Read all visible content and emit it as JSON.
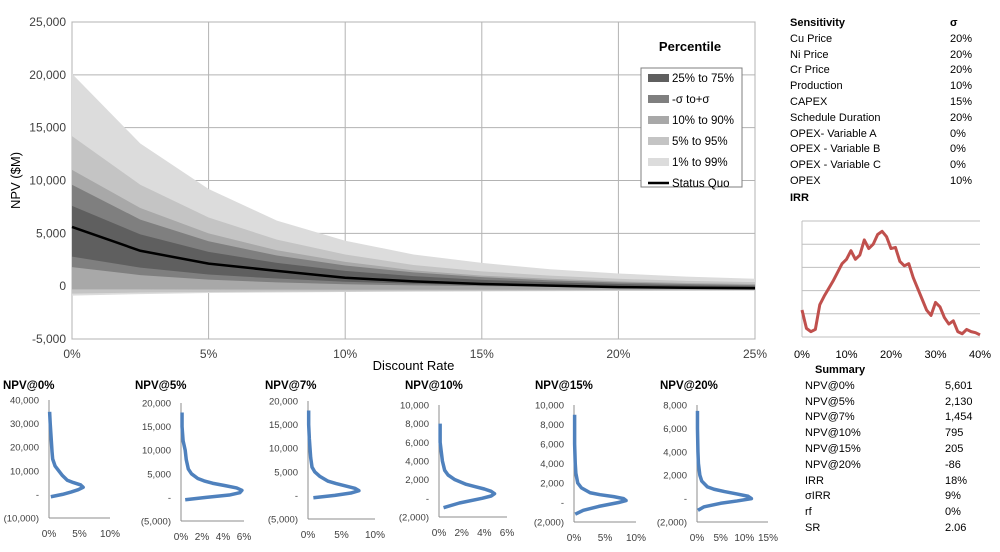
{
  "main": {
    "chart_data": {
      "type": "area",
      "xlabel": "Discount Rate",
      "ylabel": "NPV ($M)",
      "x_ticks": [
        "0%",
        "5%",
        "10%",
        "15%",
        "20%",
        "25%"
      ],
      "y_ticks": [
        "-5,000",
        "0",
        "5,000",
        "10,000",
        "15,000",
        "20,000",
        "25,000"
      ],
      "xlim": [
        0,
        25
      ],
      "ylim": [
        -5000,
        25000
      ],
      "x": [
        0,
        2.5,
        5,
        7.5,
        10,
        12.5,
        15,
        17.5,
        20,
        22.5,
        25
      ],
      "status_quo": [
        5601,
        3350,
        2130,
        1450,
        795,
        450,
        205,
        50,
        -86,
        -150,
        -200
      ],
      "bands": [
        {
          "name": "1% to 99%",
          "color": "#dcdcdc",
          "lo": [
            -900,
            -750,
            -650,
            -600,
            -550,
            -520,
            -500,
            -480,
            -460,
            -440,
            -430
          ],
          "hi": [
            20100,
            13500,
            9200,
            6200,
            4300,
            3000,
            2200,
            1600,
            1200,
            900,
            700
          ]
        },
        {
          "name": "5% to 95%",
          "color": "#c4c4c4",
          "lo": [
            -700,
            -600,
            -550,
            -520,
            -500,
            -480,
            -460,
            -440,
            -420,
            -410,
            -400
          ],
          "hi": [
            14200,
            9600,
            6500,
            4400,
            3000,
            2000,
            1400,
            1000,
            700,
            500,
            380
          ]
        },
        {
          "name": "10% to 90%",
          "color": "#a8a8a8",
          "lo": [
            -300,
            -300,
            -320,
            -330,
            -340,
            -340,
            -340,
            -340,
            -340,
            -340,
            -340
          ],
          "hi": [
            11000,
            7400,
            5000,
            3400,
            2300,
            1500,
            1000,
            700,
            450,
            300,
            200
          ]
        },
        {
          "name": "-σ to+σ",
          "color": "#7f7f7f",
          "lo": [
            1800,
            1050,
            620,
            360,
            180,
            70,
            0,
            -60,
            -100,
            -130,
            -150
          ],
          "hi": [
            9600,
            6300,
            4250,
            2900,
            1950,
            1300,
            850,
            550,
            350,
            200,
            100
          ]
        },
        {
          "name": "25% to 75%",
          "color": "#5f5f5f",
          "lo": [
            2800,
            1750,
            1100,
            720,
            420,
            230,
            100,
            20,
            -40,
            -90,
            -120
          ],
          "hi": [
            7600,
            4900,
            3250,
            2200,
            1450,
            950,
            600,
            370,
            200,
            80,
            0
          ]
        }
      ],
      "legend_title": "Percentile",
      "legend": [
        "25% to 75%",
        "-σ to+σ",
        "10% to 90%",
        "5% to 95%",
        "1% to 99%",
        "Status Quo"
      ],
      "legend_colors": [
        "#5f5f5f",
        "#7f7f7f",
        "#a8a8a8",
        "#c4c4c4",
        "#dcdcdc",
        "#000000"
      ],
      "legend_placement": "top-right",
      "grid": true
    }
  },
  "sensitivity": {
    "title": "Sensitivity",
    "sigma_header": "σ",
    "rows": [
      {
        "label": "Cu Price",
        "value": "20%"
      },
      {
        "label": "Ni Price",
        "value": "20%"
      },
      {
        "label": "Cr Price",
        "value": "20%"
      },
      {
        "label": "Production",
        "value": "10%"
      },
      {
        "label": "CAPEX",
        "value": "15%"
      },
      {
        "label": "Schedule Duration",
        "value": "20%"
      },
      {
        "label": "OPEX- Variable A",
        "value": "0%"
      },
      {
        "label": "OPEX - Variable B",
        "value": "0%"
      },
      {
        "label": "OPEX - Variable C",
        "value": "0%"
      },
      {
        "label": "OPEX",
        "value": "10%"
      }
    ]
  },
  "irr": {
    "chart_data": {
      "type": "line",
      "title": "IRR",
      "x_ticks": [
        "0%",
        "10%",
        "20%",
        "30%",
        "40%"
      ],
      "xlim": [
        0,
        40
      ],
      "ylim": [
        0,
        1
      ],
      "color": "#c0504d",
      "x": [
        0,
        1,
        2,
        3,
        4,
        5,
        6,
        7,
        8,
        9,
        10,
        11,
        12,
        13,
        14,
        15,
        16,
        17,
        18,
        19,
        20,
        21,
        22,
        23,
        24,
        25,
        26,
        27,
        28,
        29,
        30,
        31,
        32,
        33,
        34,
        35,
        36,
        37,
        38,
        39,
        40
      ],
      "values": [
        0.25,
        0.08,
        0.05,
        0.07,
        0.3,
        0.38,
        0.45,
        0.52,
        0.6,
        0.68,
        0.72,
        0.8,
        0.72,
        0.76,
        0.9,
        0.82,
        0.86,
        0.95,
        0.98,
        0.93,
        0.82,
        0.83,
        0.7,
        0.66,
        0.68,
        0.55,
        0.45,
        0.35,
        0.25,
        0.2,
        0.32,
        0.28,
        0.18,
        0.12,
        0.15,
        0.05,
        0.03,
        0.07,
        0.05,
        0.04,
        0.02
      ],
      "grid": true
    }
  },
  "summary": {
    "title": "Summary",
    "rows": [
      {
        "label": "NPV@0%",
        "value": "5,601"
      },
      {
        "label": "NPV@5%",
        "value": "2,130"
      },
      {
        "label": "NPV@7%",
        "value": "1,454"
      },
      {
        "label": "NPV@10%",
        "value": "795"
      },
      {
        "label": "NPV@15%",
        "value": "205"
      },
      {
        "label": "NPV@20%",
        "value": "-86"
      },
      {
        "label": "IRR",
        "value": "18%"
      },
      {
        "label": "σIRR",
        "value": "9%"
      },
      {
        "label": "rf",
        "value": "0%"
      },
      {
        "label": "SR",
        "value": "2.06"
      }
    ]
  },
  "histograms": {
    "chart_data": [
      {
        "type": "line",
        "title": "NPV@0%",
        "y_ticks": [
          "(10,000)",
          "-",
          "10,000",
          "20,000",
          "30,000",
          "40,000"
        ],
        "ylim": [
          -10000,
          40000
        ],
        "x_ticks": [
          "0%",
          "5%",
          "10%"
        ],
        "xlim": [
          0,
          10
        ],
        "y": [
          -1000,
          0,
          1000,
          2000,
          3000,
          4000,
          5000,
          6000,
          8000,
          10000,
          12000,
          15000,
          18000,
          22000,
          26000,
          30000,
          35000
        ],
        "freq": [
          0.3,
          2.2,
          3.6,
          4.8,
          5.6,
          5.2,
          4.0,
          3.0,
          2.2,
          1.6,
          1.0,
          0.6,
          0.5,
          0.4,
          0.3,
          0.2,
          0.1
        ]
      },
      {
        "type": "line",
        "title": "NPV@5%",
        "y_ticks": [
          "(5,000)",
          "-",
          "5,000",
          "10,000",
          "15,000",
          "20,000"
        ],
        "ylim": [
          -5000,
          20000
        ],
        "x_ticks": [
          "0%",
          "2%",
          "4%",
          "6%"
        ],
        "xlim": [
          0,
          6
        ],
        "y": [
          -500,
          0,
          500,
          1000,
          1500,
          2000,
          2500,
          3000,
          3500,
          4000,
          5000,
          6000,
          8000,
          10000,
          12000,
          15000,
          18000
        ],
        "freq": [
          0.4,
          2.4,
          4.6,
          5.6,
          5.8,
          5.3,
          4.2,
          3.0,
          2.2,
          1.6,
          1.0,
          0.7,
          0.5,
          0.4,
          0.2,
          0.1,
          0.1
        ]
      },
      {
        "type": "line",
        "title": "NPV@7%",
        "y_ticks": [
          "(5,000)",
          "-",
          "5,000",
          "10,000",
          "15,000",
          "20,000"
        ],
        "ylim": [
          -5000,
          20000
        ],
        "x_ticks": [
          "0%",
          "5%",
          "10%"
        ],
        "xlim": [
          0,
          10
        ],
        "y": [
          -500,
          0,
          500,
          1000,
          1500,
          2000,
          2500,
          3000,
          4000,
          5000,
          6000,
          8000,
          10000,
          12000,
          15000,
          18000
        ],
        "freq": [
          0.8,
          4.0,
          6.4,
          7.6,
          7.0,
          5.6,
          4.2,
          3.0,
          1.8,
          1.0,
          0.6,
          0.4,
          0.3,
          0.2,
          0.1,
          0.1
        ]
      },
      {
        "type": "line",
        "title": "NPV@10%",
        "y_ticks": [
          "(2,000)",
          "-",
          "2,000",
          "4,000",
          "6,000",
          "8,000",
          "10,000"
        ],
        "ylim": [
          -2000,
          10000
        ],
        "x_ticks": [
          "0%",
          "2%",
          "4%",
          "6%"
        ],
        "xlim": [
          0,
          6
        ],
        "y": [
          -1000,
          -500,
          0,
          250,
          500,
          750,
          1000,
          1250,
          1500,
          2000,
          2500,
          3000,
          4000,
          5000,
          6000,
          7000,
          8000
        ],
        "freq": [
          0.4,
          1.8,
          3.8,
          4.6,
          4.9,
          4.6,
          4.0,
          3.2,
          2.4,
          1.4,
          0.8,
          0.5,
          0.3,
          0.2,
          0.1,
          0.1,
          0.1
        ]
      },
      {
        "type": "line",
        "title": "NPV@15%",
        "y_ticks": [
          "(2,000)",
          "-",
          "2,000",
          "4,000",
          "6,000",
          "8,000",
          "10,000"
        ],
        "ylim": [
          -2000,
          10000
        ],
        "x_ticks": [
          "0%",
          "5%",
          "10%"
        ],
        "xlim": [
          0,
          10
        ],
        "y": [
          -1200,
          -800,
          -400,
          0,
          200,
          400,
          600,
          800,
          1000,
          1500,
          2000,
          3000,
          4000,
          6000,
          8000,
          9000
        ],
        "freq": [
          0.2,
          1.5,
          4.0,
          7.2,
          8.4,
          8.0,
          6.4,
          4.2,
          2.6,
          1.2,
          0.6,
          0.3,
          0.2,
          0.1,
          0.1,
          0.1
        ]
      },
      {
        "type": "line",
        "title": "NPV@20%",
        "y_ticks": [
          "(2,000)",
          "-",
          "2,000",
          "4,000",
          "6,000",
          "8,000"
        ],
        "ylim": [
          -2000,
          8000
        ],
        "x_ticks": [
          "0%",
          "5%",
          "10%",
          "15%"
        ],
        "xlim": [
          0,
          15
        ],
        "y": [
          -1000,
          -700,
          -400,
          -200,
          0,
          200,
          400,
          600,
          800,
          1000,
          1500,
          2000,
          3000,
          4000,
          6000,
          7500
        ],
        "freq": [
          0.2,
          1.5,
          5.0,
          8.5,
          11.5,
          10.8,
          8.4,
          5.8,
          3.6,
          2.2,
          1.0,
          0.6,
          0.3,
          0.2,
          0.1,
          0.1
        ]
      }
    ]
  }
}
